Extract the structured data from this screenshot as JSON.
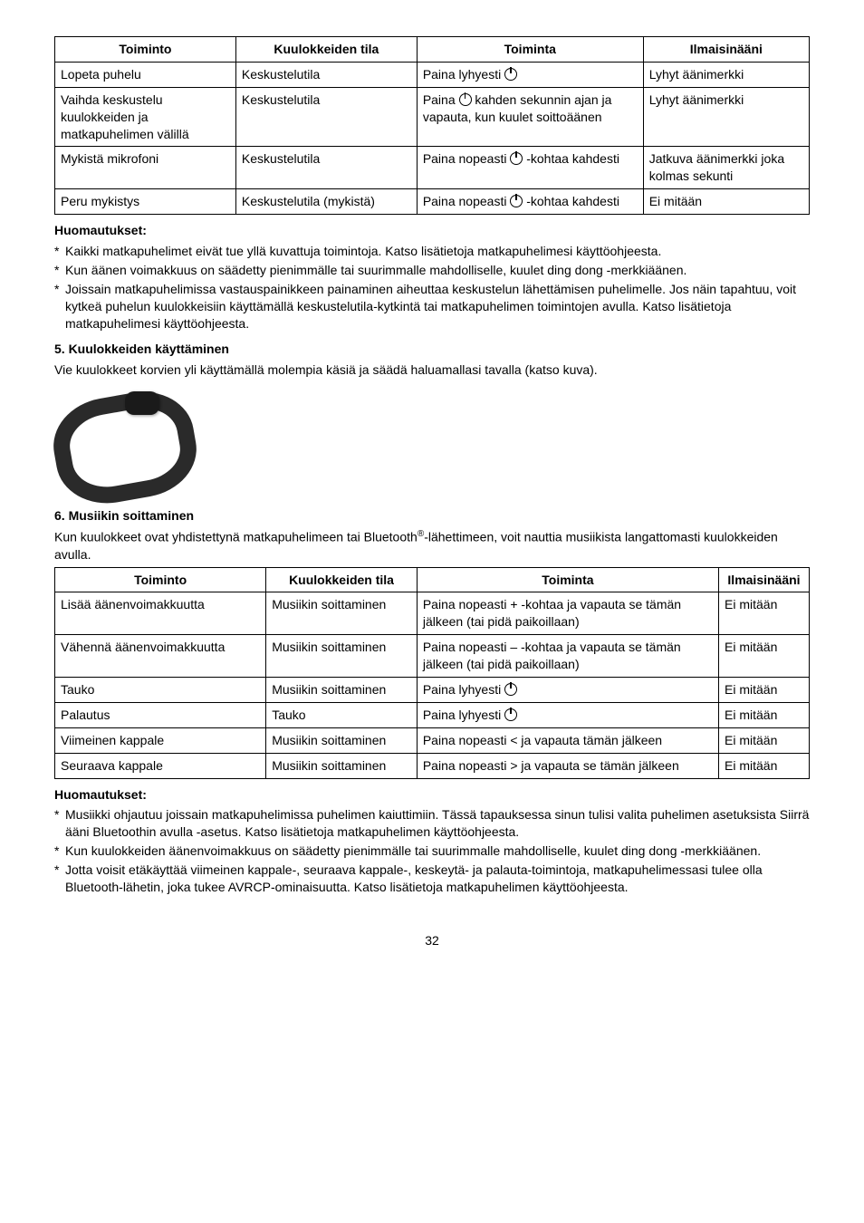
{
  "table1": {
    "headers": [
      "Toiminto",
      "Kuulokkeiden tila",
      "Toiminta",
      "Ilmaisinääni"
    ],
    "col_widths": [
      "24%",
      "24%",
      "30%",
      "22%"
    ],
    "rows": [
      {
        "c1": "Lopeta puhelu",
        "c2": "Keskustelutila",
        "c3_pre": "Paina lyhyesti ",
        "c3_icon": true,
        "c3_post": "",
        "c4": "Lyhyt äänimerkki"
      },
      {
        "c1": "Vaihda keskustelu kuulokkeiden ja matkapuhelimen välillä",
        "c2": "Keskustelutila",
        "c3_pre": "Paina ",
        "c3_icon": true,
        "c3_post": " kahden sekunnin ajan ja vapauta, kun kuulet soittoäänen",
        "c4": "Lyhyt äänimerkki"
      },
      {
        "c1": "Mykistä mikrofoni",
        "c2": "Keskustelutila",
        "c3_pre": "Paina nopeasti ",
        "c3_icon": true,
        "c3_post": " -kohtaa kahdesti",
        "c4": "Jatkuva äänimerkki joka kolmas sekunti"
      },
      {
        "c1": "Peru mykistys",
        "c2": "Keskustelutila (mykistä)",
        "c3_pre": "Paina nopeasti ",
        "c3_icon": true,
        "c3_post": " -kohtaa kahdesti",
        "c4": "Ei mitään"
      }
    ]
  },
  "notes1_title": "Huomautukset:",
  "notes1": [
    "Kaikki matkapuhelimet eivät tue yllä kuvattuja toimintoja. Katso lisätietoja matkapuhelimesi käyttöohjeesta.",
    "Kun äänen voimakkuus on säädetty pienimmälle tai suurimmalle mahdolliselle, kuulet ding dong -merkkiäänen.",
    "Joissain matkapuhelimissa vastauspainikkeen painaminen aiheuttaa keskustelun lähettämisen puhelimelle. Jos näin tapahtuu, voit kytkeä puhelun kuulokkeisiin käyttämällä keskustelutila-kytkintä tai matkapuhelimen toimintojen avulla. Katso lisätietoja matkapuhelimesi käyttöohjeesta."
  ],
  "section5_title": "5. Kuulokkeiden käyttäminen",
  "section5_body": "Vie kuulokkeet korvien yli käyttämällä molempia käsiä ja säädä haluamallasi tavalla (katso kuva).",
  "section6_title": "6. Musiikin soittaminen",
  "section6_body_pre": "Kun kuulokkeet ovat yhdistettynä matkapuhelimeen tai Bluetooth",
  "section6_body_sup": "®",
  "section6_body_post": "-lähettimeen, voit nauttia musiikista langattomasti kuulokkeiden avulla.",
  "table2": {
    "headers": [
      "Toiminto",
      "Kuulokkeiden tila",
      "Toiminta",
      "Ilmaisinääni"
    ],
    "col_widths": [
      "28%",
      "20%",
      "40%",
      "12%"
    ],
    "rows": [
      {
        "c1": "Lisää äänenvoimakkuutta",
        "c2": "Musiikin soittaminen",
        "c3_pre": "Paina nopeasti + -kohtaa ja vapauta se tämän jälkeen (tai pidä paikoillaan)",
        "c3_icon": false,
        "c3_post": "",
        "c4": "Ei mitään"
      },
      {
        "c1": "Vähennä äänenvoimakkuutta",
        "c2": "Musiikin soittaminen",
        "c3_pre": "Paina nopeasti – -kohtaa ja vapauta se tämän jälkeen (tai pidä paikoillaan)",
        "c3_icon": false,
        "c3_post": "",
        "c4": "Ei mitään"
      },
      {
        "c1": "Tauko",
        "c2": "Musiikin soittaminen",
        "c3_pre": "Paina lyhyesti ",
        "c3_icon": true,
        "c3_post": "",
        "c4": "Ei mitään"
      },
      {
        "c1": "Palautus",
        "c2": "Tauko",
        "c3_pre": "Paina lyhyesti ",
        "c3_icon": true,
        "c3_post": "",
        "c4": "Ei mitään"
      },
      {
        "c1": "Viimeinen kappale",
        "c2": "Musiikin soittaminen",
        "c3_pre": "Paina nopeasti < ja vapauta tämän jälkeen",
        "c3_icon": false,
        "c3_post": "",
        "c4": "Ei mitään"
      },
      {
        "c1": "Seuraava kappale",
        "c2": "Musiikin soittaminen",
        "c3_pre": "Paina nopeasti > ja vapauta se tämän jälkeen",
        "c3_icon": false,
        "c3_post": "",
        "c4": "Ei mitään"
      }
    ]
  },
  "notes2_title": "Huomautukset:",
  "notes2": [
    "Musiikki ohjautuu joissain matkapuhelimissa puhelimen kaiuttimiin. Tässä tapauksessa sinun tulisi valita puhelimen asetuksista Siirrä ääni Bluetoothin avulla -asetus. Katso lisätietoja matkapuhelimen käyttöohjeesta.",
    "Kun kuulokkeiden äänenvoimakkuus on säädetty pienimmälle tai suurimmalle mahdolliselle, kuulet ding dong -merkkiäänen.",
    "Jotta voisit etäkäyttää viimeinen kappale-, seuraava kappale-, keskeytä- ja palauta-toimintoja, matkapuhelimessasi tulee olla Bluetooth-lähetin, joka tukee AVRCP-ominaisuutta. Katso lisätietoja matkapuhelimen käyttöohjeesta."
  ],
  "page_number": "32"
}
